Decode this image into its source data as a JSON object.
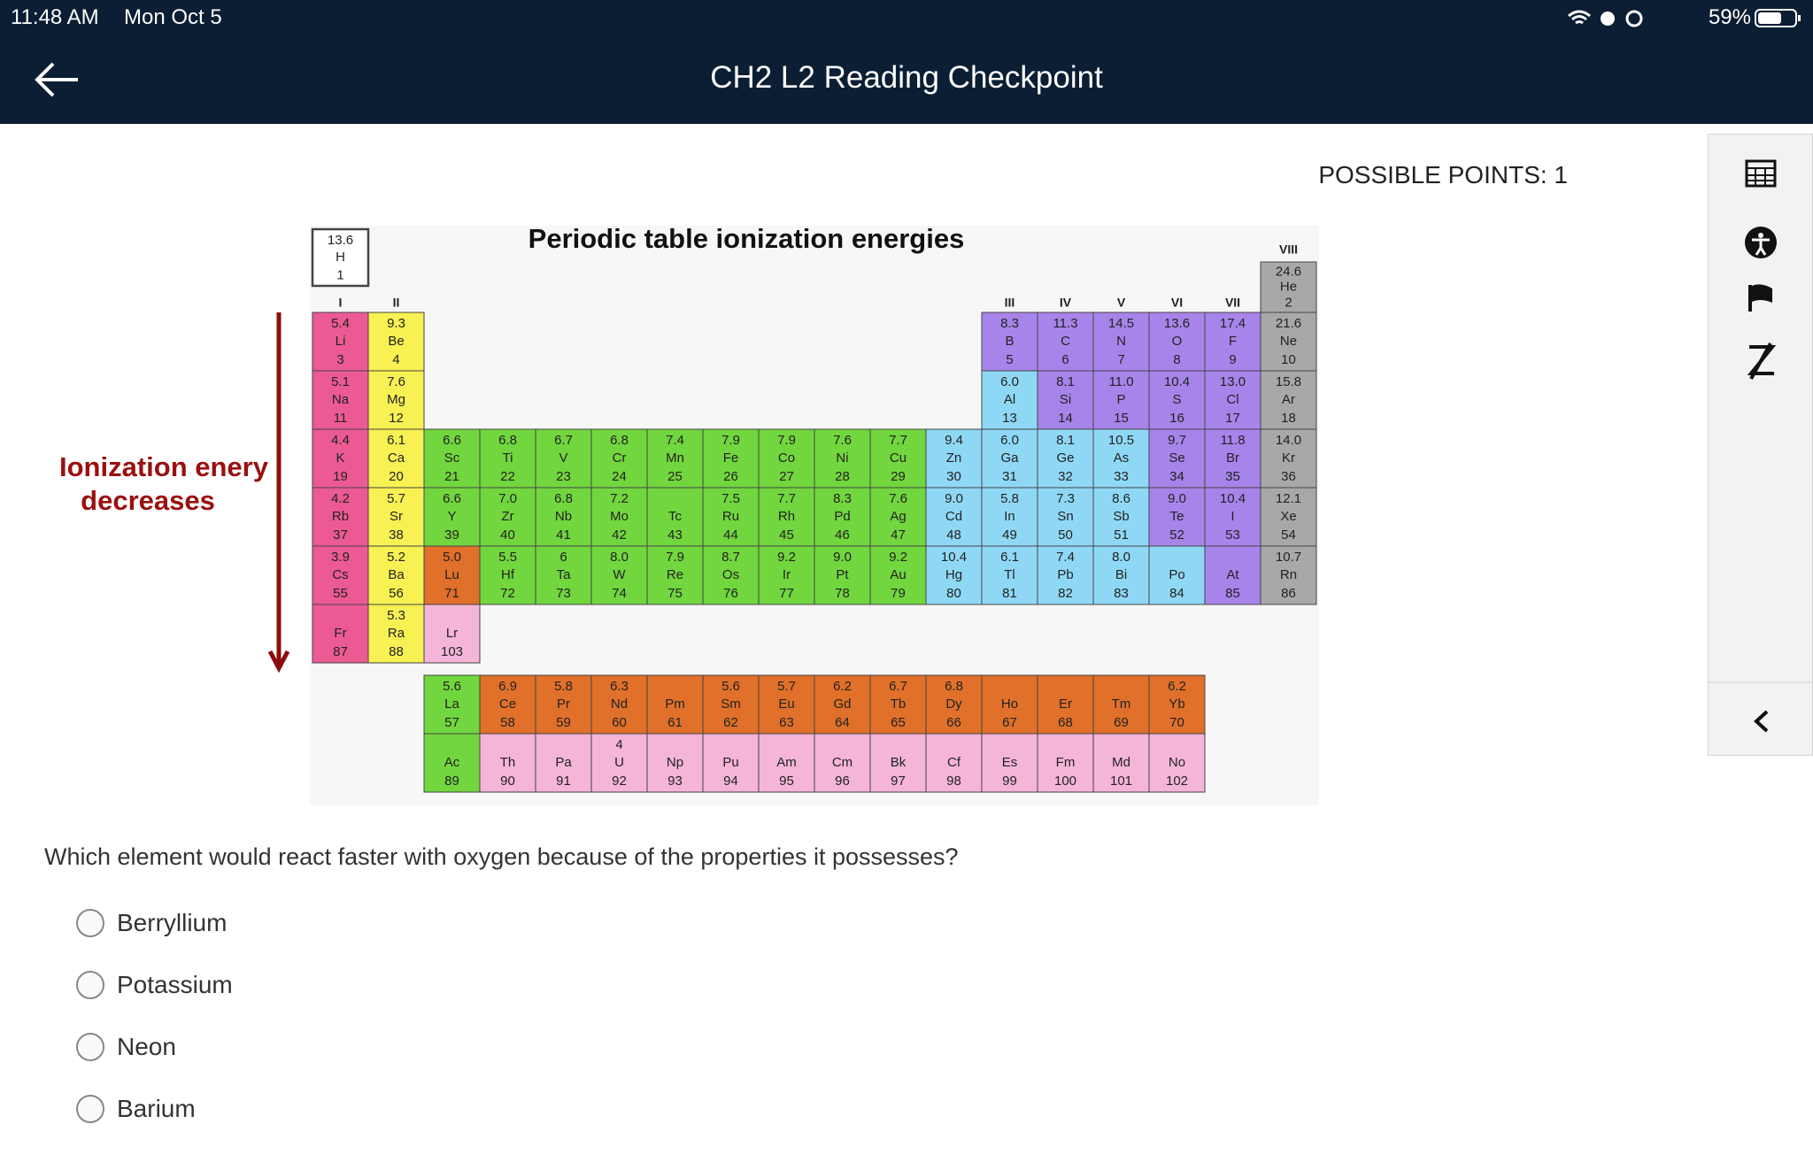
{
  "status_bar": {
    "time": "11:48 AM",
    "date": "Mon Oct 5",
    "battery": "59%"
  },
  "header": {
    "title": "CH2 L2 Reading Checkpoint"
  },
  "points": "POSSIBLE POINTS: 1",
  "figure": {
    "title": "Periodic table ionization energies",
    "annotation": [
      "Ionization enery",
      "decreases"
    ],
    "group_labels": [
      "I",
      "II",
      "III",
      "IV",
      "V",
      "VI",
      "VII",
      "VIII"
    ],
    "rows": [
      [
        {
          "e": "13.6",
          "s": "H",
          "n": "1",
          "c": "#ffffff"
        },
        {
          "e": "24.6",
          "s": "He",
          "n": "2",
          "c": "#a8a8a8"
        }
      ],
      [
        {
          "e": "5.4",
          "s": "Li",
          "n": "3",
          "c": "#ec5a93"
        },
        {
          "e": "9.3",
          "s": "Be",
          "n": "4",
          "c": "#f7f154"
        },
        {
          "e": "8.3",
          "s": "B",
          "n": "5",
          "c": "#a784ea"
        },
        {
          "e": "11.3",
          "s": "C",
          "n": "6",
          "c": "#a784ea"
        },
        {
          "e": "14.5",
          "s": "N",
          "n": "7",
          "c": "#a784ea"
        },
        {
          "e": "13.6",
          "s": "O",
          "n": "8",
          "c": "#a784ea"
        },
        {
          "e": "17.4",
          "s": "F",
          "n": "9",
          "c": "#a784ea"
        },
        {
          "e": "21.6",
          "s": "Ne",
          "n": "10",
          "c": "#a8a8a8"
        }
      ],
      [
        {
          "e": "5.1",
          "s": "Na",
          "n": "11",
          "c": "#ec5a93"
        },
        {
          "e": "7.6",
          "s": "Mg",
          "n": "12",
          "c": "#f7f154"
        },
        {
          "e": "6.0",
          "s": "Al",
          "n": "13",
          "c": "#8fd8f5"
        },
        {
          "e": "8.1",
          "s": "Si",
          "n": "14",
          "c": "#a784ea"
        },
        {
          "e": "11.0",
          "s": "P",
          "n": "15",
          "c": "#a784ea"
        },
        {
          "e": "10.4",
          "s": "S",
          "n": "16",
          "c": "#a784ea"
        },
        {
          "e": "13.0",
          "s": "Cl",
          "n": "17",
          "c": "#a784ea"
        },
        {
          "e": "15.8",
          "s": "Ar",
          "n": "18",
          "c": "#a8a8a8"
        }
      ],
      [
        {
          "e": "4.4",
          "s": "K",
          "n": "19",
          "c": "#ec5a93"
        },
        {
          "e": "6.1",
          "s": "Ca",
          "n": "20",
          "c": "#f7f154"
        },
        {
          "e": "6.6",
          "s": "Sc",
          "n": "21",
          "c": "#72d63f"
        },
        {
          "e": "6.8",
          "s": "Ti",
          "n": "22",
          "c": "#72d63f"
        },
        {
          "e": "6.7",
          "s": "V",
          "n": "23",
          "c": "#72d63f"
        },
        {
          "e": "6.8",
          "s": "Cr",
          "n": "24",
          "c": "#72d63f"
        },
        {
          "e": "7.4",
          "s": "Mn",
          "n": "25",
          "c": "#72d63f"
        },
        {
          "e": "7.9",
          "s": "Fe",
          "n": "26",
          "c": "#72d63f"
        },
        {
          "e": "7.9",
          "s": "Co",
          "n": "27",
          "c": "#72d63f"
        },
        {
          "e": "7.6",
          "s": "Ni",
          "n": "28",
          "c": "#72d63f"
        },
        {
          "e": "7.7",
          "s": "Cu",
          "n": "29",
          "c": "#72d63f"
        },
        {
          "e": "9.4",
          "s": "Zn",
          "n": "30",
          "c": "#8fd8f5"
        },
        {
          "e": "6.0",
          "s": "Ga",
          "n": "31",
          "c": "#8fd8f5"
        },
        {
          "e": "8.1",
          "s": "Ge",
          "n": "32",
          "c": "#8fd8f5"
        },
        {
          "e": "10.5",
          "s": "As",
          "n": "33",
          "c": "#8fd8f5"
        },
        {
          "e": "9.7",
          "s": "Se",
          "n": "34",
          "c": "#a784ea"
        },
        {
          "e": "11.8",
          "s": "Br",
          "n": "35",
          "c": "#a784ea"
        },
        {
          "e": "14.0",
          "s": "Kr",
          "n": "36",
          "c": "#a8a8a8"
        }
      ],
      [
        {
          "e": "4.2",
          "s": "Rb",
          "n": "37",
          "c": "#ec5a93"
        },
        {
          "e": "5.7",
          "s": "Sr",
          "n": "38",
          "c": "#f7f154"
        },
        {
          "e": "6.6",
          "s": "Y",
          "n": "39",
          "c": "#72d63f"
        },
        {
          "e": "7.0",
          "s": "Zr",
          "n": "40",
          "c": "#72d63f"
        },
        {
          "e": "6.8",
          "s": "Nb",
          "n": "41",
          "c": "#72d63f"
        },
        {
          "e": "7.2",
          "s": "Mo",
          "n": "42",
          "c": "#72d63f"
        },
        {
          "s": "Tc",
          "n": "43",
          "c": "#72d63f"
        },
        {
          "e": "7.5",
          "s": "Ru",
          "n": "44",
          "c": "#72d63f"
        },
        {
          "e": "7.7",
          "s": "Rh",
          "n": "45",
          "c": "#72d63f"
        },
        {
          "e": "8.3",
          "s": "Pd",
          "n": "46",
          "c": "#72d63f"
        },
        {
          "e": "7.6",
          "s": "Ag",
          "n": "47",
          "c": "#72d63f"
        },
        {
          "e": "9.0",
          "s": "Cd",
          "n": "48",
          "c": "#8fd8f5"
        },
        {
          "e": "5.8",
          "s": "In",
          "n": "49",
          "c": "#8fd8f5"
        },
        {
          "e": "7.3",
          "s": "Sn",
          "n": "50",
          "c": "#8fd8f5"
        },
        {
          "e": "8.6",
          "s": "Sb",
          "n": "51",
          "c": "#8fd8f5"
        },
        {
          "e": "9.0",
          "s": "Te",
          "n": "52",
          "c": "#a784ea"
        },
        {
          "e": "10.4",
          "s": "I",
          "n": "53",
          "c": "#a784ea"
        },
        {
          "e": "12.1",
          "s": "Xe",
          "n": "54",
          "c": "#a8a8a8"
        }
      ],
      [
        {
          "e": "3.9",
          "s": "Cs",
          "n": "55",
          "c": "#ec5a93"
        },
        {
          "e": "5.2",
          "s": "Ba",
          "n": "56",
          "c": "#f7f154"
        },
        {
          "e": "5.0",
          "s": "Lu",
          "n": "71",
          "c": "#e0702a"
        },
        {
          "e": "5.5",
          "s": "Hf",
          "n": "72",
          "c": "#72d63f"
        },
        {
          "e": "6",
          "s": "Ta",
          "n": "73",
          "c": "#72d63f"
        },
        {
          "e": "8.0",
          "s": "W",
          "n": "74",
          "c": "#72d63f"
        },
        {
          "e": "7.9",
          "s": "Re",
          "n": "75",
          "c": "#72d63f"
        },
        {
          "e": "8.7",
          "s": "Os",
          "n": "76",
          "c": "#72d63f"
        },
        {
          "e": "9.2",
          "s": "Ir",
          "n": "77",
          "c": "#72d63f"
        },
        {
          "e": "9.0",
          "s": "Pt",
          "n": "78",
          "c": "#72d63f"
        },
        {
          "e": "9.2",
          "s": "Au",
          "n": "79",
          "c": "#72d63f"
        },
        {
          "e": "10.4",
          "s": "Hg",
          "n": "80",
          "c": "#8fd8f5"
        },
        {
          "e": "6.1",
          "s": "Tl",
          "n": "81",
          "c": "#8fd8f5"
        },
        {
          "e": "7.4",
          "s": "Pb",
          "n": "82",
          "c": "#8fd8f5"
        },
        {
          "e": "8.0",
          "s": "Bi",
          "n": "83",
          "c": "#8fd8f5"
        },
        {
          "s": "Po",
          "n": "84",
          "c": "#8fd8f5"
        },
        {
          "s": "At",
          "n": "85",
          "c": "#a784ea"
        },
        {
          "e": "10.7",
          "s": "Rn",
          "n": "86",
          "c": "#a8a8a8"
        }
      ],
      [
        {
          "s": "Fr",
          "n": "87",
          "c": "#ec5a93"
        },
        {
          "e": "5.3",
          "s": "Ra",
          "n": "88",
          "c": "#f7f154"
        },
        {
          "s": "Lr",
          "n": "103",
          "c": "#f5b5d8"
        }
      ]
    ],
    "f_rows": [
      [
        {
          "e": "5.6",
          "s": "La",
          "n": "57",
          "c": "#72d63f"
        },
        {
          "e": "6.9",
          "s": "Ce",
          "n": "58",
          "c": "#e0702a"
        },
        {
          "e": "5.8",
          "s": "Pr",
          "n": "59",
          "c": "#e0702a"
        },
        {
          "e": "6.3",
          "s": "Nd",
          "n": "60",
          "c": "#e0702a"
        },
        {
          "s": "Pm",
          "n": "61",
          "c": "#e0702a"
        },
        {
          "e": "5.6",
          "s": "Sm",
          "n": "62",
          "c": "#e0702a"
        },
        {
          "e": "5.7",
          "s": "Eu",
          "n": "63",
          "c": "#e0702a"
        },
        {
          "e": "6.2",
          "s": "Gd",
          "n": "64",
          "c": "#e0702a"
        },
        {
          "e": "6.7",
          "s": "Tb",
          "n": "65",
          "c": "#e0702a"
        },
        {
          "e": "6.8",
          "s": "Dy",
          "n": "66",
          "c": "#e0702a"
        },
        {
          "s": "Ho",
          "n": "67",
          "c": "#e0702a"
        },
        {
          "s": "Er",
          "n": "68",
          "c": "#e0702a"
        },
        {
          "s": "Tm",
          "n": "69",
          "c": "#e0702a"
        },
        {
          "e": "6.2",
          "s": "Yb",
          "n": "70",
          "c": "#e0702a"
        }
      ],
      [
        {
          "s": "Ac",
          "n": "89",
          "c": "#72d63f"
        },
        {
          "s": "Th",
          "n": "90",
          "c": "#f5b5d8"
        },
        {
          "s": "Pa",
          "n": "91",
          "c": "#f5b5d8"
        },
        {
          "e": "4",
          "s": "U",
          "n": "92",
          "c": "#f5b5d8"
        },
        {
          "s": "Np",
          "n": "93",
          "c": "#f5b5d8"
        },
        {
          "s": "Pu",
          "n": "94",
          "c": "#f5b5d8"
        },
        {
          "s": "Am",
          "n": "95",
          "c": "#f5b5d8"
        },
        {
          "s": "Cm",
          "n": "96",
          "c": "#f5b5d8"
        },
        {
          "s": "Bk",
          "n": "97",
          "c": "#f5b5d8"
        },
        {
          "s": "Cf",
          "n": "98",
          "c": "#f5b5d8"
        },
        {
          "s": "Es",
          "n": "99",
          "c": "#f5b5d8"
        },
        {
          "s": "Fm",
          "n": "100",
          "c": "#f5b5d8"
        },
        {
          "s": "Md",
          "n": "101",
          "c": "#f5b5d8"
        },
        {
          "s": "No",
          "n": "102",
          "c": "#f5b5d8"
        }
      ]
    ]
  },
  "question": {
    "text": "Which element would react faster with oxygen because of the properties it possesses?",
    "options": [
      "Berryllium",
      "Potassium",
      "Neon",
      "Barium"
    ]
  }
}
